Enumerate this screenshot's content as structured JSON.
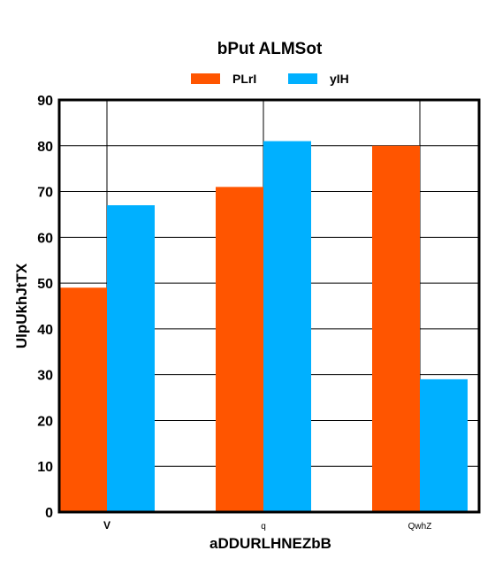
{
  "chart_data": {
    "type": "bar",
    "title": "bPut ALMSot",
    "xlabel": "aDDURLHNEZbB",
    "ylabel": "UlpUkhJtTX",
    "categories": [
      "V",
      "q",
      "QwhZ"
    ],
    "series": [
      {
        "name": "PLrI",
        "color": "#ff5500",
        "values": [
          49,
          71,
          80
        ]
      },
      {
        "name": "yIH",
        "color": "#00b0ff",
        "values": [
          67,
          81,
          29
        ]
      }
    ],
    "ylim": [
      0,
      90
    ],
    "yticks": [
      0,
      10,
      20,
      30,
      40,
      50,
      60,
      70,
      80,
      90
    ],
    "grid": true,
    "legend_position": "top"
  }
}
